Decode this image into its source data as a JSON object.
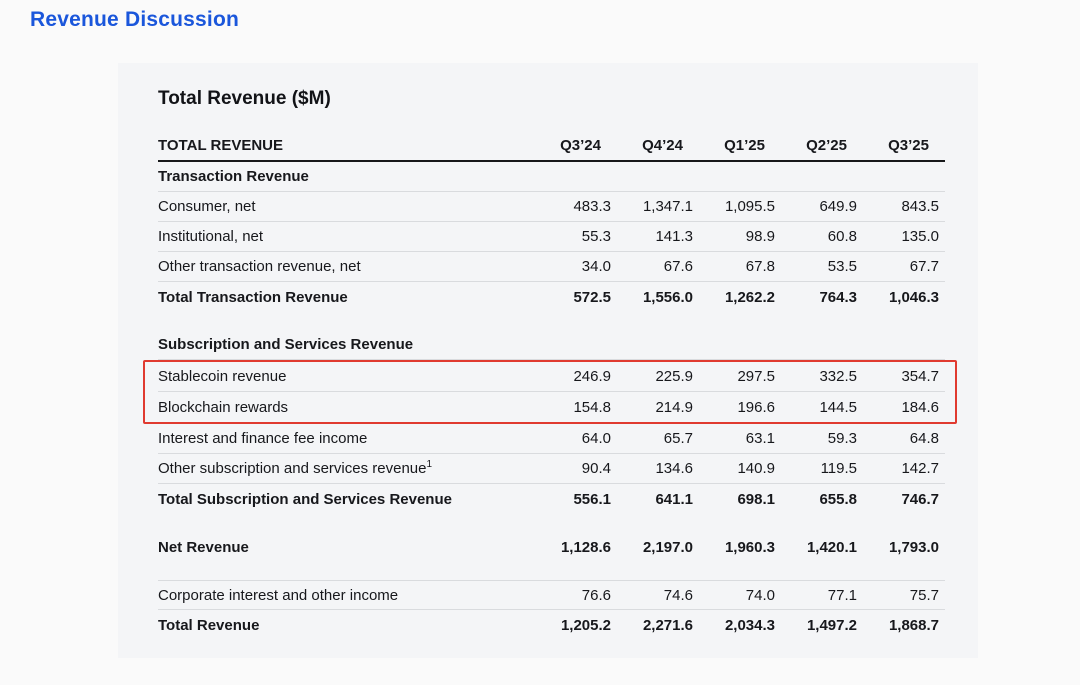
{
  "page_title": "Revenue Discussion",
  "colors": {
    "title_blue": "#1a56db",
    "highlight_red": "#e03a30",
    "panel_bg": "#f4f5f7"
  },
  "table": {
    "title": "Total Revenue ($M)",
    "header": {
      "label": "TOTAL REVENUE",
      "columns": [
        "Q3’24",
        "Q4’24",
        "Q1’25",
        "Q2’25",
        "Q3’25"
      ]
    },
    "rows": [
      {
        "type": "section",
        "label": "Transaction Revenue"
      },
      {
        "type": "data",
        "label": "Consumer, net",
        "values": [
          "483.3",
          "1,347.1",
          "1,095.5",
          "649.9",
          "843.5"
        ]
      },
      {
        "type": "data",
        "label": "Institutional, net",
        "values": [
          "55.3",
          "141.3",
          "98.9",
          "60.8",
          "135.0"
        ]
      },
      {
        "type": "data",
        "label": "Other transaction revenue, net",
        "values": [
          "34.0",
          "67.6",
          "67.8",
          "53.5",
          "67.7"
        ]
      },
      {
        "type": "total",
        "label": "Total Transaction Revenue",
        "values": [
          "572.5",
          "1,556.0",
          "1,262.2",
          "764.3",
          "1,046.3"
        ]
      },
      {
        "type": "spacer"
      },
      {
        "type": "section",
        "label": "Subscription and Services Revenue"
      },
      {
        "type": "data",
        "label": "Stablecoin revenue",
        "values": [
          "246.9",
          "225.9",
          "297.5",
          "332.5",
          "354.7"
        ],
        "highlight": "start"
      },
      {
        "type": "data",
        "label": "Blockchain rewards",
        "values": [
          "154.8",
          "214.9",
          "196.6",
          "144.5",
          "184.6"
        ],
        "highlight": "end"
      },
      {
        "type": "data",
        "label": "Interest and finance fee income",
        "values": [
          "64.0",
          "65.7",
          "63.1",
          "59.3",
          "64.8"
        ]
      },
      {
        "type": "data",
        "label": "Other subscription and services revenue",
        "sup": "1",
        "values": [
          "90.4",
          "134.6",
          "140.9",
          "119.5",
          "142.7"
        ]
      },
      {
        "type": "total",
        "label": "Total Subscription and Services Revenue",
        "values": [
          "556.1",
          "641.1",
          "698.1",
          "655.8",
          "746.7"
        ]
      },
      {
        "type": "spacer"
      },
      {
        "type": "total",
        "label": "Net Revenue",
        "values": [
          "1,128.6",
          "2,197.0",
          "1,960.3",
          "1,420.1",
          "1,793.0"
        ]
      },
      {
        "type": "spacer"
      },
      {
        "type": "data",
        "label": "Corporate interest and other income",
        "values": [
          "76.6",
          "74.6",
          "74.0",
          "77.1",
          "75.7"
        ],
        "top_border": true
      },
      {
        "type": "total",
        "label": "Total Revenue",
        "values": [
          "1,205.2",
          "2,271.6",
          "2,034.3",
          "1,497.2",
          "1,868.7"
        ]
      }
    ]
  }
}
